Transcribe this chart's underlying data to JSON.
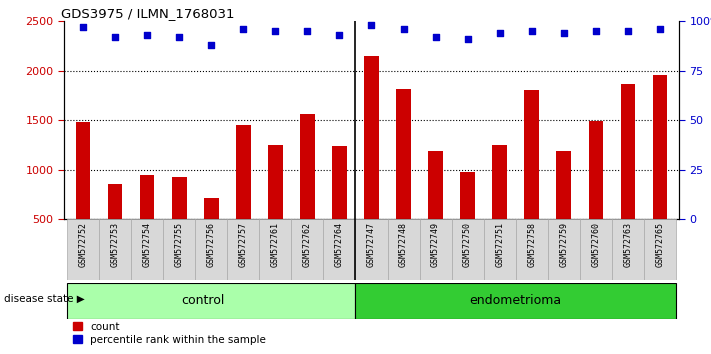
{
  "title": "GDS3975 / ILMN_1768031",
  "samples": [
    "GSM572752",
    "GSM572753",
    "GSM572754",
    "GSM572755",
    "GSM572756",
    "GSM572757",
    "GSM572761",
    "GSM572762",
    "GSM572764",
    "GSM572747",
    "GSM572748",
    "GSM572749",
    "GSM572750",
    "GSM572751",
    "GSM572758",
    "GSM572759",
    "GSM572760",
    "GSM572763",
    "GSM572765"
  ],
  "counts": [
    1480,
    860,
    950,
    930,
    720,
    1450,
    1250,
    1560,
    1240,
    2150,
    1820,
    1190,
    980,
    1250,
    1810,
    1190,
    1490,
    1870,
    1960
  ],
  "percentile_ranks": [
    97,
    92,
    93,
    92,
    88,
    96,
    95,
    95,
    93,
    98,
    96,
    92,
    91,
    94,
    95,
    94,
    95,
    95,
    96
  ],
  "bar_color": "#cc0000",
  "dot_color": "#0000cc",
  "ylim_left": [
    500,
    2500
  ],
  "ylim_right": [
    0,
    100
  ],
  "yticks_left": [
    500,
    1000,
    1500,
    2000,
    2500
  ],
  "yticks_right": [
    0,
    25,
    50,
    75,
    100
  ],
  "ytick_labels_right": [
    "0",
    "25",
    "50",
    "75",
    "100%"
  ],
  "control_count": 9,
  "endometrioma_count": 10,
  "bg_plot": "#ffffff",
  "bg_xticklabels": "#d8d8d8",
  "bg_control": "#aaffaa",
  "bg_endometrioma": "#33cc33",
  "legend_count_label": "count",
  "legend_percentile_label": "percentile rank within the sample",
  "xlabel_disease": "disease state",
  "label_control": "control",
  "label_endometrioma": "endometrioma"
}
